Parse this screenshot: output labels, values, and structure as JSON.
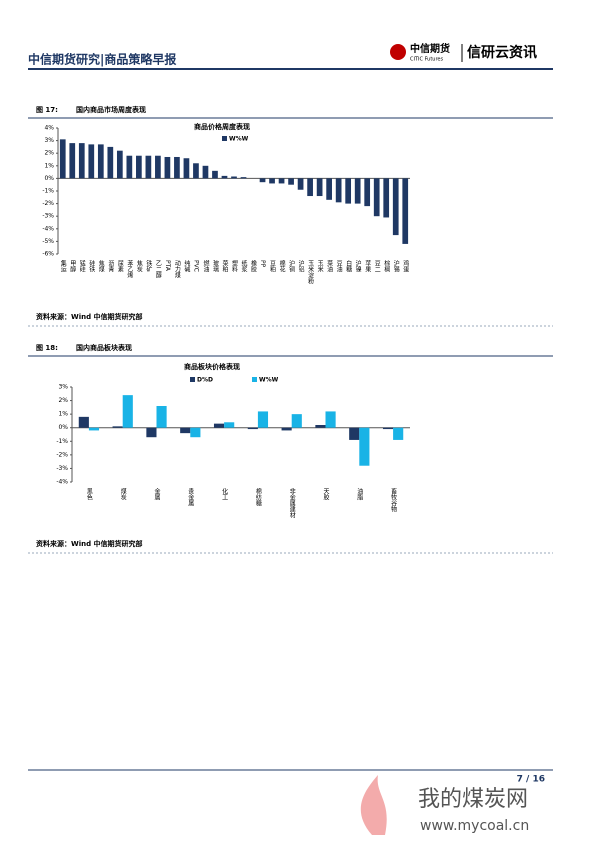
{
  "header": {
    "title": "中信期货研究|商品策略早报",
    "logo_cn": "中信期货",
    "logo_en": "CITIC Futures",
    "brand": "信研云资讯"
  },
  "figures": [
    {
      "number": "图 17:",
      "caption": "国内商品市场周度表现",
      "source": "资料来源：Wind 中信期货研究部",
      "chart_data": {
        "type": "bar",
        "title": "商品价格周度表现",
        "categories": [
          "集运",
          "甲醇",
          "锰硅",
          "硅铁",
          "焦煤",
          "沥青",
          "尿素",
          "苯乙烯",
          "焦炭",
          "铁矿",
          "乙二醇",
          "PTA",
          "动力煤",
          "纯碱",
          "PVC",
          "燃油",
          "玻璃",
          "菜粕",
          "塑料",
          "纸浆",
          "橡胶",
          "PP",
          "豆粕",
          "棉花",
          "沪铜",
          "沪铝",
          "玉米淀粉",
          "玉米",
          "菜油",
          "豆油",
          "白糖",
          "沪镍",
          "苹果",
          "豆二",
          "棕榈",
          "沪锡",
          "鸡蛋"
        ],
        "series": [
          {
            "name": "W%W",
            "color": "#1f3864",
            "values": [
              3.1,
              2.8,
              2.8,
              2.7,
              2.7,
              2.5,
              2.2,
              1.8,
              1.8,
              1.8,
              1.8,
              1.7,
              1.7,
              1.6,
              1.2,
              1.0,
              0.6,
              0.2,
              0.15,
              0.1,
              0,
              -0.3,
              -0.4,
              -0.4,
              -0.5,
              -0.9,
              -1.4,
              -1.4,
              -1.7,
              -1.9,
              -2.0,
              -2.0,
              -2.2,
              -3.0,
              -3.1,
              -4.5,
              -5.2
            ]
          }
        ],
        "ylim": [
          -6,
          4
        ],
        "yticks": [
          {
            "value": -6,
            "label": "-6%"
          },
          {
            "value": -5,
            "label": "-5%"
          },
          {
            "value": -4,
            "label": "-4%"
          },
          {
            "value": -3,
            "label": "-3%"
          },
          {
            "value": -2,
            "label": "-2%"
          },
          {
            "value": -1,
            "label": "-1%"
          },
          {
            "value": 0,
            "label": "0%"
          },
          {
            "value": 1,
            "label": "1%"
          },
          {
            "value": 2,
            "label": "2%"
          },
          {
            "value": 3,
            "label": "3%"
          },
          {
            "value": 4,
            "label": "4%"
          }
        ]
      }
    },
    {
      "number": "图 18:",
      "caption": "国内商品板块表现",
      "source": "资料来源：Wind 中信期货研究部",
      "chart_data": {
        "type": "bar",
        "title": "商品板块价格表现",
        "categories": [
          "黑色",
          "煤炭",
          "金属",
          "贵金属",
          "化工",
          "棉纺糖",
          "非金属建材",
          "天胶",
          "油脂",
          "畜牧谷物"
        ],
        "series": [
          {
            "name": "D%D",
            "color": "#1f3864",
            "values": [
              0.8,
              0.1,
              -0.7,
              -0.4,
              0.3,
              -0.1,
              -0.2,
              0.2,
              -0.9,
              -0.1
            ]
          },
          {
            "name": "W%W",
            "color": "#19b3e6",
            "values": [
              -0.2,
              2.4,
              1.6,
              -0.7,
              0.4,
              1.2,
              1.0,
              1.2,
              -2.8,
              -0.9
            ]
          }
        ],
        "ylim": [
          -4,
          3
        ],
        "yticks": [
          {
            "value": -4,
            "label": "-4%"
          },
          {
            "value": -3,
            "label": "-3%"
          },
          {
            "value": -2,
            "label": "-2%"
          },
          {
            "value": -1,
            "label": "-1%"
          },
          {
            "value": 0,
            "label": "0%"
          },
          {
            "value": 1,
            "label": "1%"
          },
          {
            "value": 2,
            "label": "2%"
          },
          {
            "value": 3,
            "label": "3%"
          }
        ]
      }
    }
  ],
  "footer": {
    "page": "7 / 16"
  },
  "watermark": {
    "name": "我的煤炭网",
    "url": "www.mycoal.cn"
  }
}
